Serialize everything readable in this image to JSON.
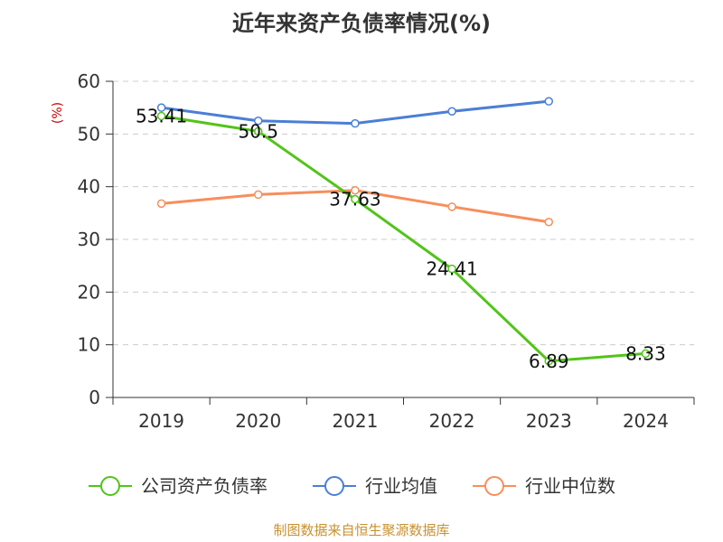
{
  "chart_data": {
    "type": "line",
    "title": "近年来资产负债率情况(%)",
    "ylabel": "(%)",
    "xlabel": "",
    "categories": [
      "2019",
      "2020",
      "2021",
      "2022",
      "2023",
      "2024"
    ],
    "ylim": [
      0,
      60
    ],
    "yticks": [
      0,
      10,
      20,
      30,
      40,
      50,
      60
    ],
    "grid": true,
    "legend_position": "bottom",
    "series": [
      {
        "name": "公司资产负债率",
        "color": "#52c41a",
        "values": [
          53.41,
          50.5,
          37.63,
          24.41,
          6.89,
          8.33
        ],
        "labels": [
          "53.41",
          "50.5",
          "37.63",
          "24.41",
          "6.89",
          "8.33"
        ]
      },
      {
        "name": "行业均值",
        "color": "#4a7fd6",
        "values": [
          55.0,
          52.5,
          52.0,
          54.3,
          56.2,
          null
        ]
      },
      {
        "name": "行业中位数",
        "color": "#f78e5c",
        "values": [
          36.8,
          38.5,
          39.3,
          36.2,
          33.3,
          null
        ]
      }
    ],
    "source": "制图数据来自恒生聚源数据库"
  }
}
